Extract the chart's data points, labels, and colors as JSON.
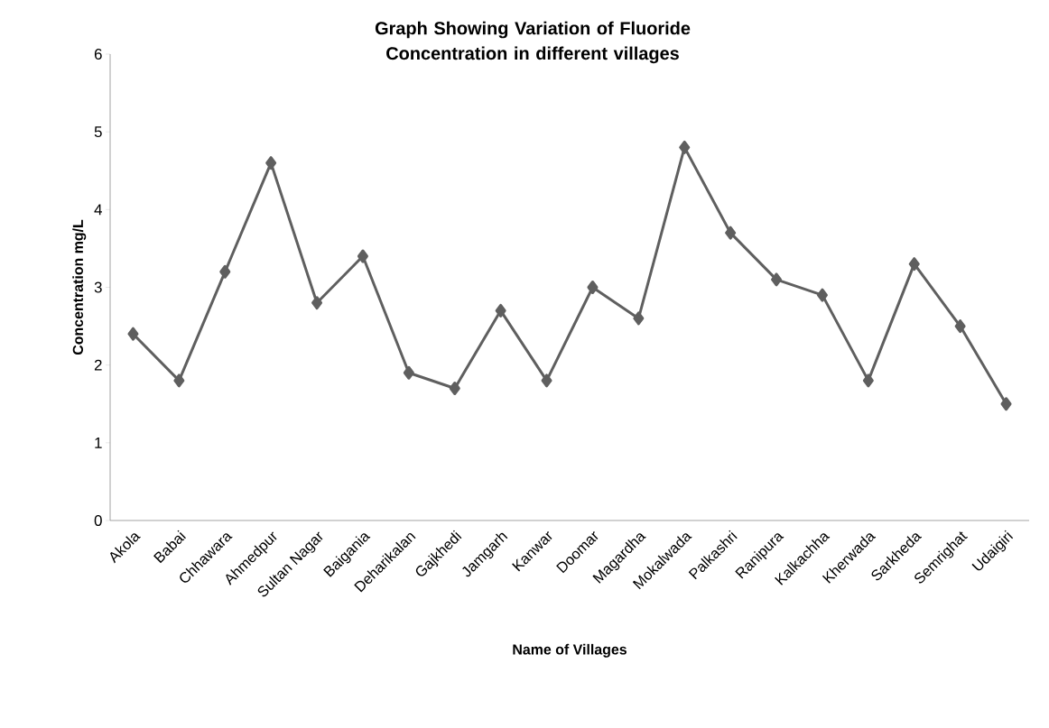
{
  "chart_data": {
    "type": "line",
    "title": "Graph Showing Variation of Fluoride Concentration in different villages",
    "xlabel": "Name of Villages",
    "ylabel": "Concentration mg/L",
    "categories": [
      "Akola",
      "Babai",
      "Chhawara",
      "Ahmedpur",
      "Sultan Nagar",
      "Baigania",
      "Deharikalan",
      "Gajkhedi",
      "Jamgarh",
      "Kanwar",
      "Doomar",
      "Magardha",
      "Mokalwada",
      "Palkashri",
      "Ranipura",
      "Kalkachha",
      "Kherwada",
      "Sarkheda",
      "Semrighat",
      "Udaigiri"
    ],
    "values": [
      2.4,
      1.8,
      3.2,
      4.6,
      2.8,
      3.4,
      1.9,
      1.7,
      2.7,
      1.8,
      3.0,
      2.6,
      4.8,
      3.7,
      3.1,
      2.9,
      1.8,
      3.3,
      2.5,
      1.5
    ],
    "color": "#5f5f5f",
    "marker": "diamond",
    "line_style": "solid",
    "ylim": [
      0,
      6
    ],
    "yticks": [
      0,
      1,
      2,
      3,
      4,
      5,
      6
    ],
    "grid": false
  }
}
